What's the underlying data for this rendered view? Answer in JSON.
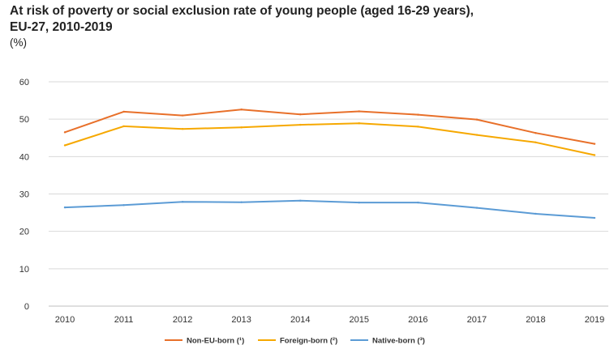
{
  "chart_data": {
    "type": "line",
    "title": "At risk of poverty or social exclusion rate of young people (aged 16-29 years),",
    "subtitle": "EU-27, 2010-2019",
    "unit": "(%)",
    "xlabel": "",
    "ylabel": "",
    "ylim": [
      0,
      60
    ],
    "yticks": [
      0,
      10,
      20,
      30,
      40,
      50,
      60
    ],
    "grid": true,
    "legend_position": "bottom",
    "categories": [
      "2010",
      "2011",
      "2012",
      "2013",
      "2014",
      "2015",
      "2016",
      "2017",
      "2018",
      "2019"
    ],
    "series": [
      {
        "name": "Non-EU-born (¹)",
        "color": "#e8702a",
        "values": [
          46.5,
          52.0,
          51.0,
          52.6,
          51.3,
          52.1,
          51.2,
          49.9,
          46.3,
          43.4
        ]
      },
      {
        "name": "Foreign-born (²)",
        "color": "#f6a800",
        "values": [
          43.0,
          48.1,
          47.4,
          47.8,
          48.5,
          48.9,
          48.0,
          45.8,
          43.8,
          40.4
        ]
      },
      {
        "name": "Native-born (³)",
        "color": "#5b9bd5",
        "values": [
          26.4,
          27.0,
          27.9,
          27.8,
          28.2,
          27.7,
          27.7,
          26.3,
          24.7,
          23.6
        ]
      }
    ]
  }
}
